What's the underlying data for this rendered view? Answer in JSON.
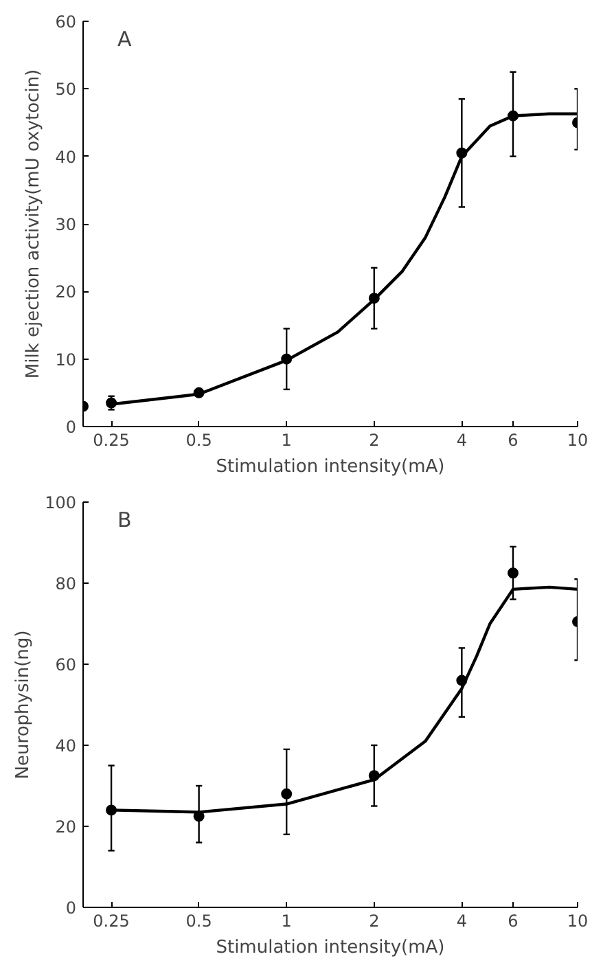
{
  "chart_data": [
    {
      "type": "scatter",
      "xlabel": "Stimulation intensity(mA)",
      "ylabel": "Milk ejection activity(mU oxytocin)",
      "annotations": [
        "A"
      ],
      "log": "x",
      "grid": false,
      "xlim": [
        0.2,
        10
      ],
      "ylim": [
        0,
        60
      ],
      "xticks": [
        0.25,
        0.5,
        1,
        2,
        4,
        6,
        10
      ],
      "yticks": [
        0,
        10,
        20,
        30,
        40,
        50,
        60
      ],
      "series": [
        {
          "marker": "circle",
          "color": "#000000",
          "x": [
            0.2,
            0.25,
            0.5,
            1,
            2,
            4,
            6,
            10
          ],
          "values": [
            3,
            3.5,
            5,
            10,
            19,
            40.5,
            46,
            45
          ],
          "errors": [
            null,
            1,
            0.5,
            4.5,
            4.5,
            8,
            [
              40,
              52.5
            ],
            [
              41,
              50
            ]
          ]
        },
        {
          "type": "line",
          "marker": "none",
          "color": "#000000",
          "x": [
            0.25,
            0.5,
            1,
            1.5,
            2,
            2.5,
            3,
            3.5,
            4,
            5,
            6,
            8,
            10
          ],
          "values": [
            3.3,
            4.8,
            9.8,
            14,
            18.8,
            23,
            28,
            34,
            40,
            44.5,
            46,
            46.3,
            46.3
          ]
        }
      ]
    },
    {
      "type": "scatter",
      "xlabel": "Stimulation intensity(mA)",
      "ylabel": "Neurophysin(ng)",
      "annotations": [
        "B"
      ],
      "log": "x",
      "grid": false,
      "xlim": [
        0.2,
        10
      ],
      "ylim": [
        0,
        100
      ],
      "xticks": [
        0.25,
        0.5,
        1,
        2,
        4,
        6,
        10
      ],
      "yticks": [
        0,
        20,
        40,
        60,
        80,
        100
      ],
      "series": [
        {
          "marker": "circle",
          "color": "#000000",
          "x": [
            0.25,
            0.5,
            1,
            2,
            4,
            6,
            10
          ],
          "values": [
            24,
            22.5,
            28,
            32.5,
            56,
            82.5,
            70.5
          ],
          "errors": [
            [
              14,
              35
            ],
            [
              16,
              30
            ],
            [
              18,
              39
            ],
            [
              25,
              40
            ],
            [
              47,
              64
            ],
            [
              76,
              89
            ],
            [
              61,
              81
            ]
          ]
        },
        {
          "type": "line",
          "marker": "none",
          "color": "#000000",
          "x": [
            0.25,
            0.5,
            1,
            2,
            3,
            4,
            4.5,
            5,
            6,
            8,
            10
          ],
          "values": [
            24,
            23.5,
            25.5,
            31.5,
            41,
            54,
            62,
            70,
            78.5,
            79,
            78.5
          ]
        }
      ]
    }
  ]
}
